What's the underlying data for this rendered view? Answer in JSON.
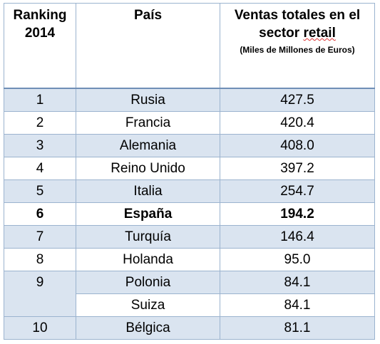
{
  "headers": {
    "rank": "Ranking 2014",
    "country": "País",
    "sales_main_a": "Ventas totales en el sector ",
    "sales_main_b": "retail",
    "sales_sub": "(Miles de Millones de Euros)"
  },
  "rows": [
    {
      "rank": "1",
      "country": "Rusia",
      "sales": "427.5"
    },
    {
      "rank": "2",
      "country": "Francia",
      "sales": "420.4"
    },
    {
      "rank": "3",
      "country": "Alemania",
      "sales": "408.0"
    },
    {
      "rank": "4",
      "country": "Reino Unido",
      "sales": "397.2"
    },
    {
      "rank": "5",
      "country": "Italia",
      "sales": "254.7"
    },
    {
      "rank": "6",
      "country": "España",
      "sales": "194.2"
    },
    {
      "rank": "7",
      "country": "Turquía",
      "sales": "146.4"
    },
    {
      "rank": "8",
      "country": "Holanda",
      "sales": "95.0"
    },
    {
      "rank": "9",
      "country": "Polonia",
      "sales": "84.1"
    },
    {
      "rank": "",
      "country": "Suiza",
      "sales": "84.1"
    },
    {
      "rank": "10",
      "country": "Bélgica",
      "sales": "81.1"
    }
  ],
  "colors": {
    "band": "#dae4f0",
    "border": "#9bb3cf"
  }
}
